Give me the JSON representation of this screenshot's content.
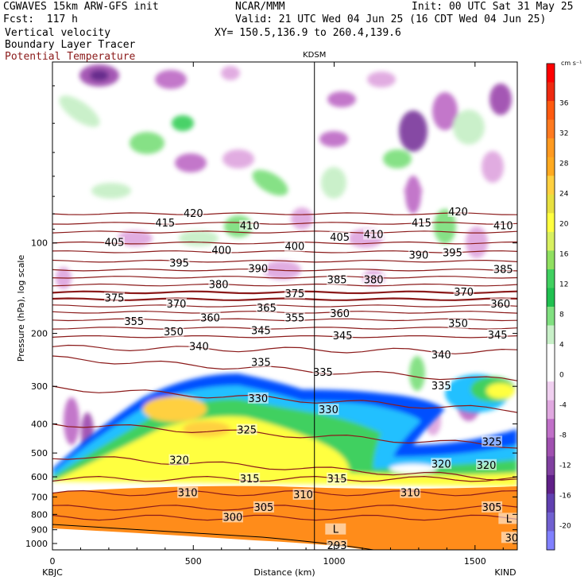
{
  "header": {
    "model": "CGWAVES 15km ARW-GFS init",
    "org": "NCAR/MMM",
    "init": "Init: 00 UTC Sat 31 May 25",
    "fcst": "Fcst:  117 h",
    "valid": "Valid: 21 UTC Wed 04 Jun 25 (16 CDT Wed 04 Jun 25)",
    "field1": "Vertical velocity",
    "field2": "Boundary Layer Tracer",
    "field3": "Potential Temperature",
    "xy": "XY= 150.5,136.9 to 260.4,139.6",
    "theta_color": "#8b1a1a"
  },
  "chart_data": {
    "type": "heatmap",
    "station_mid": "KDSM",
    "station_left": "KBJC",
    "station_right": "KIND",
    "xlabel": "Distance (km)",
    "ylabel": "Pressure (hPa), log scale",
    "xlim": [
      0,
      1650
    ],
    "x_ticks": [
      0,
      500,
      1000,
      1500
    ],
    "ylim": [
      1050,
      25
    ],
    "y_scale": "log",
    "y_ticks": [
      100,
      200,
      300,
      400,
      500,
      600,
      700,
      800,
      900,
      1000
    ],
    "kdsm_distance_km": 930,
    "colorbar": {
      "units": "cm s⁻¹",
      "labels": [
        "36",
        "32",
        "28",
        "24",
        "20",
        "16",
        "12",
        "8",
        "4",
        "0",
        "-4",
        "-8",
        "-12",
        "-16",
        "-20"
      ],
      "colors": [
        "#ff0000",
        "#ee2a10",
        "#ff5a10",
        "#ff7a20",
        "#ff9a20",
        "#ffaa20",
        "#ffd040",
        "#e8e040",
        "#ffff40",
        "#d8f060",
        "#90e060",
        "#40d060",
        "#20c050",
        "#80e080",
        "#c8f0c8",
        "#ffffff",
        "#ffffff",
        "#f0d0f0",
        "#e0a8e0",
        "#c070c8",
        "#a050b0",
        "#8040a0",
        "#602088",
        "#6040b0",
        "#7060d0",
        "#8080ff"
      ]
    },
    "isentropes": [
      {
        "theta": 420,
        "p": 80
      },
      {
        "theta": 415,
        "p": 86
      },
      {
        "theta": 410,
        "p": 92
      },
      {
        "theta": 405,
        "p": 100
      },
      {
        "theta": 400,
        "p": 107
      },
      {
        "theta": 395,
        "p": 115
      },
      {
        "theta": 390,
        "p": 123
      },
      {
        "theta": 385,
        "p": 130
      },
      {
        "theta": 380,
        "p": 138
      },
      {
        "theta": 375,
        "p": 146
      },
      {
        "theta": 370,
        "p": 154
      },
      {
        "theta": 365,
        "p": 162
      },
      {
        "theta": 360,
        "p": 170
      },
      {
        "theta": 355,
        "p": 180
      },
      {
        "theta": 350,
        "p": 192
      },
      {
        "theta": 345,
        "p": 205
      },
      {
        "theta": 340,
        "p": 225
      },
      {
        "theta": 335,
        "p": 255
      },
      {
        "theta": 330,
        "p": 320
      },
      {
        "theta": 325,
        "p": 420
      },
      {
        "theta": 320,
        "p": 540
      },
      {
        "theta": 315,
        "p": 610
      },
      {
        "theta": 310,
        "p": 680
      },
      {
        "theta": 305,
        "p": 760
      },
      {
        "theta": 300,
        "p": 820
      }
    ],
    "contour_labels": [
      {
        "t": "420",
        "x": 500,
        "p": 80
      },
      {
        "t": "415",
        "x": 400,
        "p": 86
      },
      {
        "t": "410",
        "x": 700,
        "p": 88
      },
      {
        "t": "405",
        "x": 220,
        "p": 100
      },
      {
        "t": "400",
        "x": 600,
        "p": 106
      },
      {
        "t": "400",
        "x": 860,
        "p": 103
      },
      {
        "t": "395",
        "x": 450,
        "p": 117
      },
      {
        "t": "390",
        "x": 730,
        "p": 122
      },
      {
        "t": "380",
        "x": 590,
        "p": 138
      },
      {
        "t": "375",
        "x": 220,
        "p": 153
      },
      {
        "t": "370",
        "x": 440,
        "p": 160
      },
      {
        "t": "365",
        "x": 760,
        "p": 165
      },
      {
        "t": "375",
        "x": 860,
        "p": 148
      },
      {
        "t": "360",
        "x": 560,
        "p": 178
      },
      {
        "t": "355",
        "x": 290,
        "p": 183
      },
      {
        "t": "355",
        "x": 860,
        "p": 178
      },
      {
        "t": "350",
        "x": 430,
        "p": 198
      },
      {
        "t": "345",
        "x": 740,
        "p": 196
      },
      {
        "t": "340",
        "x": 520,
        "p": 222
      },
      {
        "t": "335",
        "x": 740,
        "p": 250
      },
      {
        "t": "330",
        "x": 730,
        "p": 330
      },
      {
        "t": "325",
        "x": 690,
        "p": 420
      },
      {
        "t": "320",
        "x": 450,
        "p": 530
      },
      {
        "t": "315",
        "x": 700,
        "p": 610
      },
      {
        "t": "310",
        "x": 480,
        "p": 680
      },
      {
        "t": "305",
        "x": 750,
        "p": 760
      },
      {
        "t": "300",
        "x": 640,
        "p": 820
      },
      {
        "t": "405",
        "x": 1020,
        "p": 96
      },
      {
        "t": "410",
        "x": 1140,
        "p": 94
      },
      {
        "t": "415",
        "x": 1310,
        "p": 86
      },
      {
        "t": "420",
        "x": 1440,
        "p": 79
      },
      {
        "t": "410",
        "x": 1600,
        "p": 88
      },
      {
        "t": "390",
        "x": 1300,
        "p": 110
      },
      {
        "t": "395",
        "x": 1420,
        "p": 108
      },
      {
        "t": "385",
        "x": 1600,
        "p": 123
      },
      {
        "t": "385",
        "x": 1010,
        "p": 133
      },
      {
        "t": "380",
        "x": 1140,
        "p": 133
      },
      {
        "t": "370",
        "x": 1460,
        "p": 146
      },
      {
        "t": "360",
        "x": 1590,
        "p": 160
      },
      {
        "t": "360",
        "x": 1020,
        "p": 172
      },
      {
        "t": "350",
        "x": 1440,
        "p": 186
      },
      {
        "t": "345",
        "x": 1580,
        "p": 203
      },
      {
        "t": "345",
        "x": 1030,
        "p": 204
      },
      {
        "t": "340",
        "x": 1380,
        "p": 236
      },
      {
        "t": "335",
        "x": 1380,
        "p": 300
      },
      {
        "t": "335",
        "x": 960,
        "p": 270
      },
      {
        "t": "330",
        "x": 980,
        "p": 360
      },
      {
        "t": "325",
        "x": 1560,
        "p": 460
      },
      {
        "t": "320",
        "x": 1380,
        "p": 545
      },
      {
        "t": "320",
        "x": 1540,
        "p": 550
      },
      {
        "t": "315",
        "x": 1010,
        "p": 610
      },
      {
        "t": "310",
        "x": 1270,
        "p": 680
      },
      {
        "t": "310",
        "x": 890,
        "p": 690
      },
      {
        "t": "305",
        "x": 1560,
        "p": 760
      },
      {
        "t": "L",
        "x": 1005,
        "p": 900
      },
      {
        "t": "L",
        "x": 1620,
        "p": 830
      },
      {
        "t": "293",
        "x": 1010,
        "p": 1020
      },
      {
        "t": "30",
        "x": 1630,
        "p": 960
      }
    ]
  }
}
